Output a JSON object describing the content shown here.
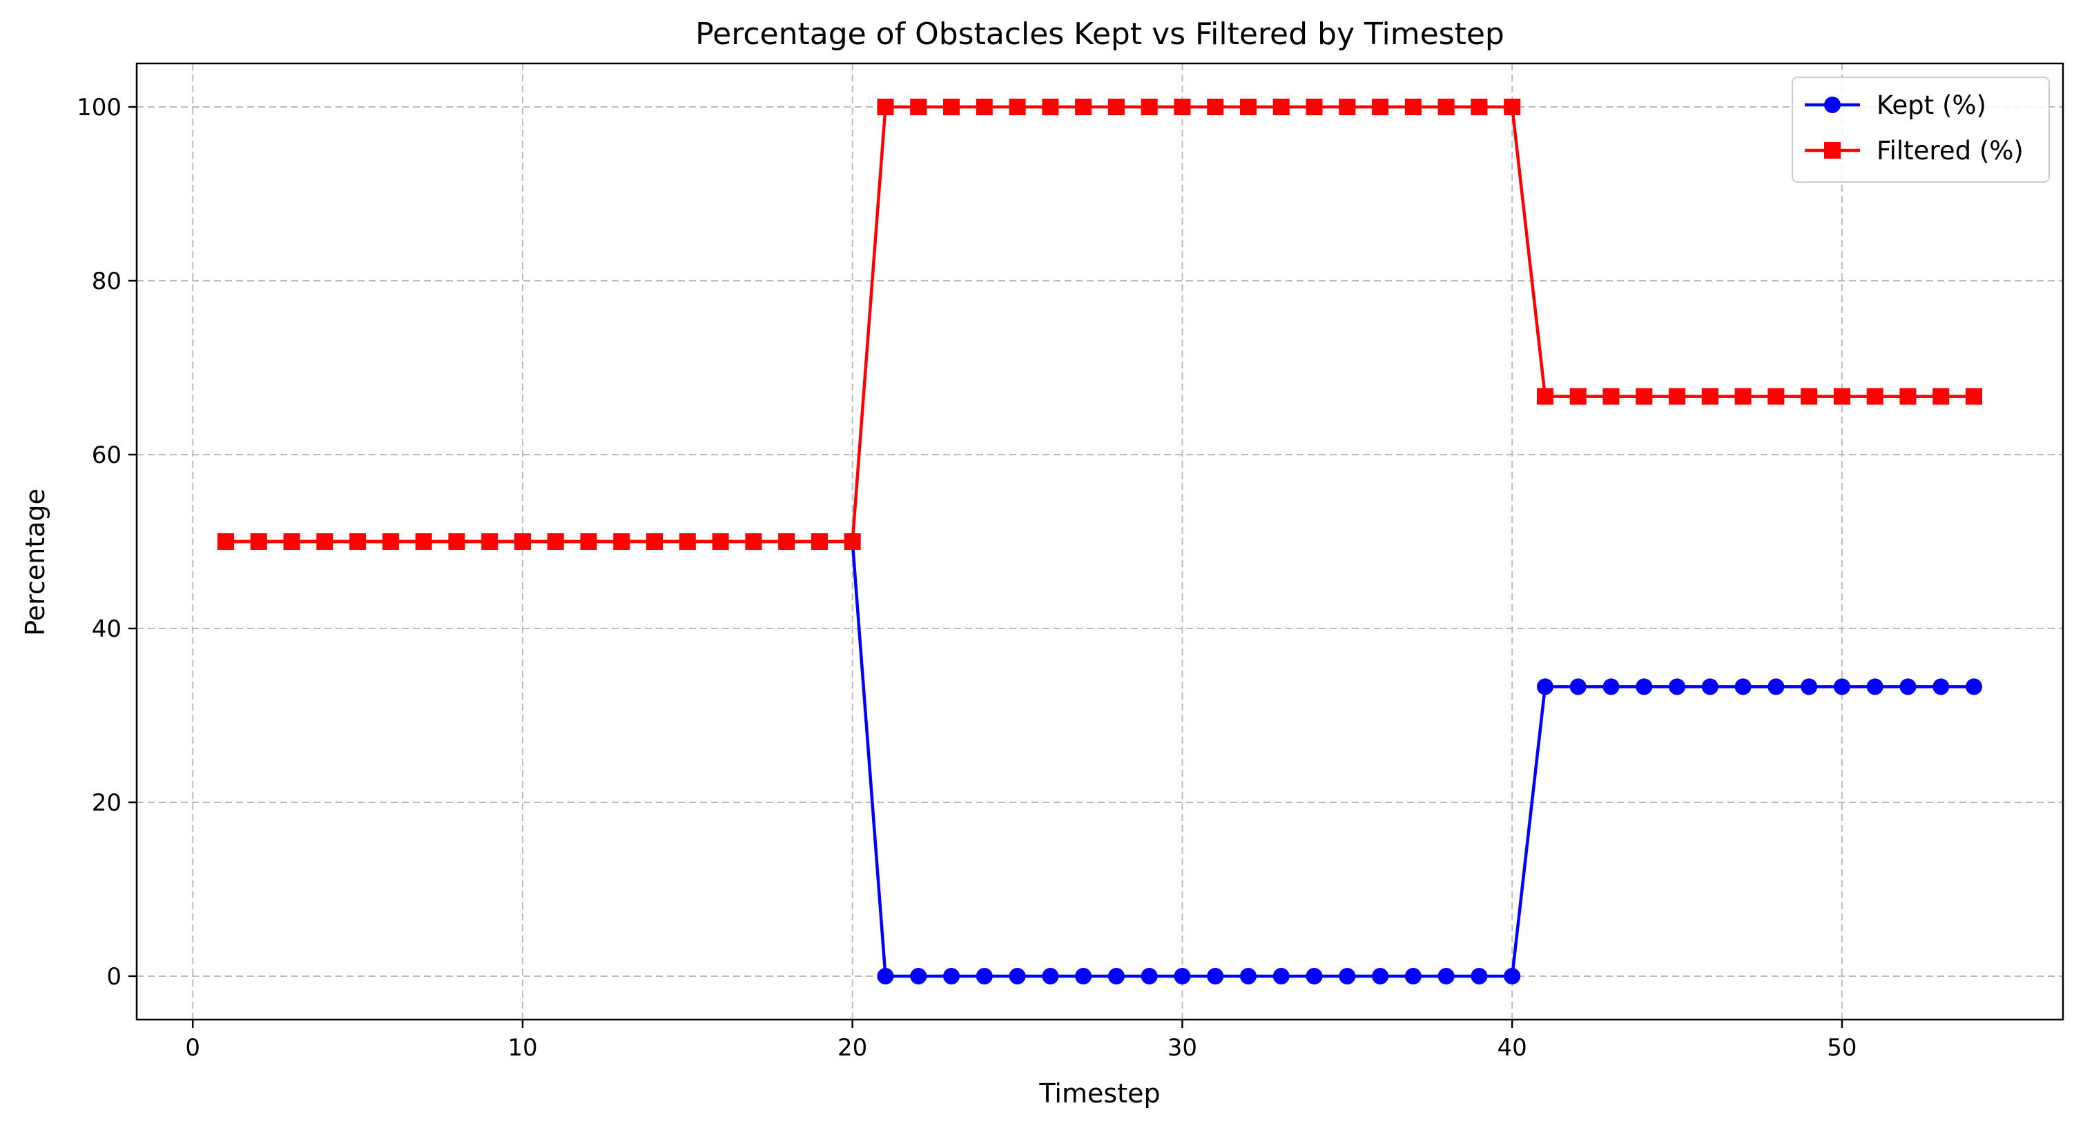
{
  "chart_data": {
    "type": "line",
    "title": "Percentage of Obstacles Kept vs Filtered by Timestep",
    "xlabel": "Timestep",
    "ylabel": "Percentage",
    "xlim": [
      -1.7,
      56.7
    ],
    "ylim": [
      -5,
      105
    ],
    "xticks": [
      0,
      10,
      20,
      30,
      40,
      50
    ],
    "yticks": [
      0,
      20,
      40,
      60,
      80,
      100
    ],
    "grid": true,
    "legend_position": "top-right",
    "x": [
      1,
      2,
      3,
      4,
      5,
      6,
      7,
      8,
      9,
      10,
      11,
      12,
      13,
      14,
      15,
      16,
      17,
      18,
      19,
      20,
      21,
      22,
      23,
      24,
      25,
      26,
      27,
      28,
      29,
      30,
      31,
      32,
      33,
      34,
      35,
      36,
      37,
      38,
      39,
      40,
      41,
      42,
      43,
      44,
      45,
      46,
      47,
      48,
      49,
      50,
      51,
      52,
      53,
      54
    ],
    "series": [
      {
        "name": "Kept (%)",
        "color": "#0000ff",
        "marker": "circle",
        "values": [
          50,
          50,
          50,
          50,
          50,
          50,
          50,
          50,
          50,
          50,
          50,
          50,
          50,
          50,
          50,
          50,
          50,
          50,
          50,
          50,
          0,
          0,
          0,
          0,
          0,
          0,
          0,
          0,
          0,
          0,
          0,
          0,
          0,
          0,
          0,
          0,
          0,
          0,
          0,
          0,
          33.3,
          33.3,
          33.3,
          33.3,
          33.3,
          33.3,
          33.3,
          33.3,
          33.3,
          33.3,
          33.3,
          33.3,
          33.3,
          33.3
        ]
      },
      {
        "name": "Filtered (%)",
        "color": "#ff0000",
        "marker": "square",
        "values": [
          50,
          50,
          50,
          50,
          50,
          50,
          50,
          50,
          50,
          50,
          50,
          50,
          50,
          50,
          50,
          50,
          50,
          50,
          50,
          50,
          100,
          100,
          100,
          100,
          100,
          100,
          100,
          100,
          100,
          100,
          100,
          100,
          100,
          100,
          100,
          100,
          100,
          100,
          100,
          100,
          66.7,
          66.7,
          66.7,
          66.7,
          66.7,
          66.7,
          66.7,
          66.7,
          66.7,
          66.7,
          66.7,
          66.7,
          66.7,
          66.7
        ]
      }
    ]
  }
}
